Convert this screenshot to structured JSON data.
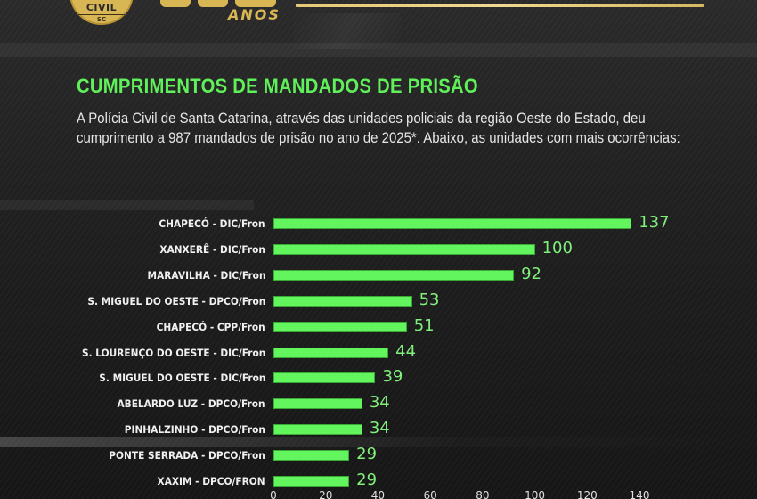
{
  "header": {
    "badge_text": "CIVIL",
    "badge_state": "SC",
    "anniversary_suffix": "ANOS",
    "accent_gold": "#d8b654"
  },
  "title": "CUMPRIMENTOS DE MANDADOS DE PRISÃO",
  "intro": "A Polícia Civil de Santa Catarina, através das unidades policiais da região Oeste do Estado, deu cumprimento a 987 mandados de prisão no ano de 2025*. Abaixo, as unidades com mais ocorrências:",
  "colors": {
    "title_green": "#5ff05a",
    "bar_green": "#62f55e",
    "value_green": "#82f07c",
    "background": "#1c1c1c"
  },
  "chart_data": {
    "type": "bar",
    "orientation": "horizontal",
    "title": "CUMPRIMENTOS DE MANDADOS DE PRISÃO",
    "xlabel": "",
    "ylabel": "",
    "categories": [
      "CHAPECÓ - DIC/Fron",
      "XANXERÊ - DIC/Fron",
      "MARAVILHA - DIC/Fron",
      "S. MIGUEL DO OESTE - DPCO/Fron",
      "CHAPECÓ - CPP/Fron",
      "S. LOURENÇO DO OESTE - DIC/Fron",
      "S. MIGUEL DO OESTE - DIC/Fron",
      "ABELARDO LUZ - DPCO/Fron",
      "PINHALZINHO - DPCO/Fron",
      "PONTE SERRADA - DPCO/Fron",
      "XAXIM - DPCO/FRON"
    ],
    "values": [
      137,
      100,
      92,
      53,
      51,
      44,
      39,
      34,
      34,
      29,
      29
    ],
    "xlim": [
      0,
      140
    ],
    "xticks": [
      "0",
      "20",
      "40",
      "60",
      "80",
      "100",
      "120",
      "140"
    ],
    "grid": false,
    "data_labels": true
  }
}
